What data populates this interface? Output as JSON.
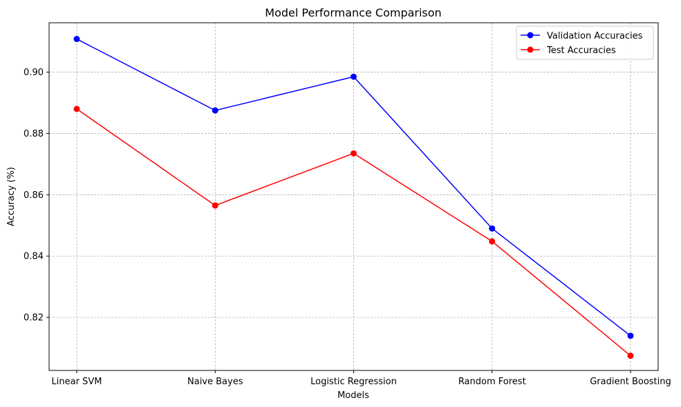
{
  "chart_data": {
    "type": "line",
    "title": "Model Performance Comparison",
    "xlabel": "Models",
    "ylabel": "Accuracy (%)",
    "categories": [
      "Linear SVM",
      "Naive Bayes",
      "Logistic Regression",
      "Random Forest",
      "Gradient Boosting"
    ],
    "series": [
      {
        "name": "Validation Accuracies",
        "color": "#0000ff",
        "values": [
          0.9108,
          0.8875,
          0.8985,
          0.849,
          0.814
        ]
      },
      {
        "name": "Test Accuracies",
        "color": "#ff0000",
        "values": [
          0.888,
          0.8565,
          0.8735,
          0.8448,
          0.8075
        ]
      }
    ],
    "yticks": [
      "0.82",
      "0.84",
      "0.86",
      "0.88",
      "0.90"
    ],
    "ylim": [
      0.8027,
      0.9161
    ],
    "grid": true,
    "legend_position": "top-right"
  }
}
